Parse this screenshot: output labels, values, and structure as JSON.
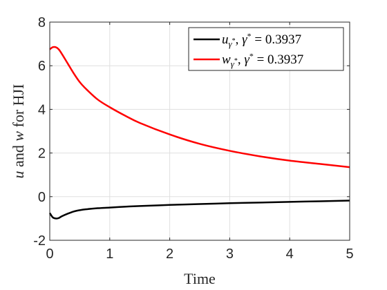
{
  "chart_data": {
    "type": "line",
    "xlabel": "Time",
    "ylabel": "u and w for HJI",
    "xlim": [
      0,
      5
    ],
    "ylim": [
      -2,
      8
    ],
    "xticks": [
      0,
      1,
      2,
      3,
      4,
      5
    ],
    "yticks": [
      -2,
      0,
      2,
      4,
      6,
      8
    ],
    "xtick_labels": [
      "0",
      "1",
      "2",
      "3",
      "4",
      "5"
    ],
    "ytick_labels": [
      "-2",
      "0",
      "2",
      "4",
      "6",
      "8"
    ],
    "grid": true,
    "legend_position": "top-right",
    "series": [
      {
        "name": "u_{γ*}, γ* = 0.3937",
        "color": "#000000",
        "x": [
          0,
          0.05,
          0.1,
          0.15,
          0.2,
          0.3,
          0.4,
          0.5,
          0.6,
          0.8,
          1.0,
          1.25,
          1.5,
          2.0,
          2.5,
          3.0,
          3.5,
          4.0,
          4.5,
          5.0
        ],
        "y": [
          -0.75,
          -0.95,
          -1.0,
          -0.98,
          -0.9,
          -0.78,
          -0.68,
          -0.62,
          -0.58,
          -0.53,
          -0.5,
          -0.46,
          -0.43,
          -0.38,
          -0.34,
          -0.3,
          -0.27,
          -0.24,
          -0.21,
          -0.18
        ]
      },
      {
        "name": "w_{γ*}, γ* = 0.3937",
        "color": "#ff0000",
        "x": [
          0,
          0.05,
          0.1,
          0.15,
          0.2,
          0.3,
          0.4,
          0.5,
          0.6,
          0.8,
          1.0,
          1.25,
          1.5,
          2.0,
          2.5,
          3.0,
          3.5,
          4.0,
          4.5,
          5.0
        ],
        "y": [
          6.75,
          6.85,
          6.85,
          6.75,
          6.55,
          6.1,
          5.65,
          5.25,
          4.95,
          4.45,
          4.1,
          3.72,
          3.38,
          2.85,
          2.42,
          2.1,
          1.85,
          1.65,
          1.5,
          1.35
        ]
      }
    ]
  }
}
